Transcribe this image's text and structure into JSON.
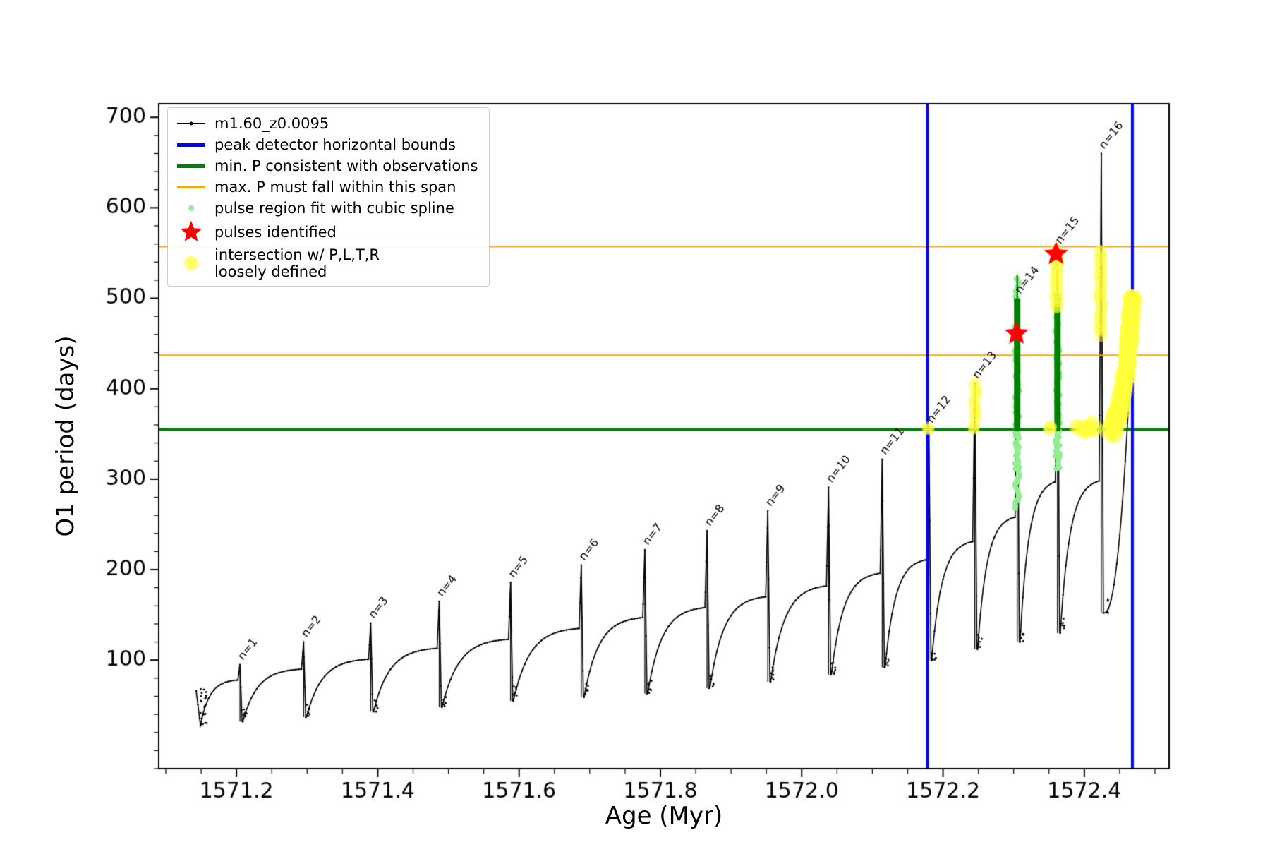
{
  "chart_data": {
    "type": "line",
    "title": "",
    "xlabel": "Age (Myr)",
    "ylabel": "O1 period (days)",
    "xlim": [
      1571.09,
      1572.52
    ],
    "ylim": [
      -20,
      715
    ],
    "grid": false,
    "xticks": {
      "values": [
        1571.2,
        1571.4,
        1571.6,
        1571.8,
        1572.0,
        1572.2,
        1572.4
      ],
      "labels": [
        "1571.2",
        "1571.4",
        "1571.6",
        "1571.8",
        "1572.0",
        "1572.2",
        "1572.4"
      ]
    },
    "yticks": {
      "values": [
        100,
        200,
        300,
        400,
        500,
        600,
        700
      ],
      "labels": [
        "100",
        "200",
        "300",
        "400",
        "500",
        "600",
        "700"
      ]
    },
    "xminor_step": 0.05,
    "yminor_step": 20,
    "colors": {
      "curve": "#000000",
      "bounds": "#0000ff",
      "min_p": "#008000",
      "max_p": "#ffa500",
      "spline": "#90ee90",
      "pulse": "#ff0000",
      "intersection": "#ffff3c"
    },
    "series_label": "m1.60_z0.0095",
    "legend": {
      "position": "upper-left",
      "entries": [
        {
          "marker": "line-dot",
          "color": "#000000",
          "label": "m1.60_z0.0095"
        },
        {
          "marker": "thick-line",
          "color": "#0000ff",
          "label": "peak detector horizontal bounds"
        },
        {
          "marker": "thick-line",
          "color": "#008000",
          "label": "min. P consistent with observations"
        },
        {
          "marker": "line",
          "color": "#ffa500",
          "label": "max. P must fall within this span"
        },
        {
          "marker": "small-dot",
          "color": "#90ee90",
          "label": "pulse region fit with cubic spline"
        },
        {
          "marker": "star",
          "color": "#ff0000",
          "label": "pulses identified"
        },
        {
          "marker": "big-dot",
          "color": "#ffff3c",
          "label": "intersection w/ P,L,T,R\nloosely defined"
        }
      ]
    },
    "prelude": {
      "x_start": 1571.143,
      "y_start": 66,
      "x_dip": 1571.149,
      "y_dip": 28
    },
    "pulses": [
      {
        "n": 1,
        "label": "n=1",
        "x": 1571.205,
        "peak": 95,
        "shoulder": 78,
        "min_after": 32
      },
      {
        "n": 2,
        "label": "n=2",
        "x": 1571.295,
        "peak": 120,
        "shoulder": 90,
        "min_after": 37
      },
      {
        "n": 3,
        "label": "n=3",
        "x": 1571.39,
        "peak": 141,
        "shoulder": 101,
        "min_after": 43
      },
      {
        "n": 4,
        "label": "n=4",
        "x": 1571.487,
        "peak": 165,
        "shoulder": 113,
        "min_after": 48
      },
      {
        "n": 5,
        "label": "n=5",
        "x": 1571.588,
        "peak": 186,
        "shoulder": 123,
        "min_after": 55
      },
      {
        "n": 6,
        "label": "n=6",
        "x": 1571.688,
        "peak": 205,
        "shoulder": 135,
        "min_after": 59
      },
      {
        "n": 7,
        "label": "n=7",
        "x": 1571.778,
        "peak": 222,
        "shoulder": 147,
        "min_after": 63
      },
      {
        "n": 8,
        "label": "n=8",
        "x": 1571.866,
        "peak": 243,
        "shoulder": 158,
        "min_after": 69
      },
      {
        "n": 9,
        "label": "n=9",
        "x": 1571.952,
        "peak": 265,
        "shoulder": 170,
        "min_after": 76
      },
      {
        "n": 10,
        "label": "n=10",
        "x": 1572.038,
        "peak": 291,
        "shoulder": 182,
        "min_after": 84
      },
      {
        "n": 11,
        "label": "n=11",
        "x": 1572.114,
        "peak": 322,
        "shoulder": 196,
        "min_after": 92
      },
      {
        "n": 12,
        "label": "n=12",
        "x": 1572.18,
        "peak": 357,
        "shoulder": 211,
        "min_after": 100
      },
      {
        "n": 13,
        "label": "n=13",
        "x": 1572.245,
        "peak": 406,
        "shoulder": 231,
        "min_after": 112
      },
      {
        "n": 14,
        "label": "n=14",
        "x": 1572.305,
        "peak": 500,
        "shoulder": 258,
        "min_after": 120
      },
      {
        "n": 15,
        "label": "n=15",
        "x": 1572.362,
        "peak": 555,
        "shoulder": 297,
        "min_after": 130
      },
      {
        "n": 16,
        "label": "n=16",
        "x": 1572.424,
        "peak": 660,
        "shoulder": 298,
        "min_after": 152
      }
    ],
    "tail": {
      "x_end": 1572.47,
      "y_end": 505
    },
    "hlines": [
      {
        "name": "min-p-line",
        "y": 355,
        "color": "#008000",
        "width": 4
      },
      {
        "name": "max-p-lower",
        "y": 437,
        "color": "#ffa500",
        "width": 2
      },
      {
        "name": "max-p-upper",
        "y": 557,
        "color": "#ffa500",
        "width": 2
      }
    ],
    "vlines": [
      {
        "name": "peak-bound-left",
        "x": 1572.178,
        "color": "#0000ff",
        "width": 4
      },
      {
        "name": "peak-bound-right",
        "x": 1572.468,
        "color": "#0000ff",
        "width": 4
      }
    ],
    "green_columns": [
      {
        "x": 1572.305,
        "y0": 353,
        "y1": 500,
        "width": 9
      },
      {
        "x": 1572.305,
        "y0": 500,
        "y1": 526,
        "width": 2.2
      },
      {
        "x": 1572.362,
        "y0": 353,
        "y1": 506,
        "width": 9
      }
    ],
    "lightgreen_segments": [
      {
        "x": 1572.305,
        "y0": 268,
        "y1": 352,
        "count": 34,
        "size": 4
      },
      {
        "x": 1572.362,
        "y0": 312,
        "y1": 352,
        "count": 20,
        "size": 4
      },
      {
        "x": 1572.305,
        "y0": 352,
        "y1": 468,
        "count": 26,
        "size": 4.5
      },
      {
        "x": 1572.362,
        "y0": 352,
        "y1": 478,
        "count": 26,
        "size": 4.5
      },
      {
        "x": 1572.305,
        "y0": 495,
        "y1": 522,
        "count": 8,
        "size": 4
      }
    ],
    "stars": [
      {
        "x": 1572.304,
        "y": 461
      },
      {
        "x": 1572.36,
        "y": 549
      }
    ],
    "yellow_paths": [
      {
        "points": [
          [
            1572.179,
            356
          ]
        ],
        "size": 8,
        "count": 3
      },
      {
        "points": [
          [
            1572.245,
            355
          ],
          [
            1572.246,
            406
          ]
        ],
        "size": 8,
        "count": 16
      },
      {
        "points": [
          [
            1572.361,
            489
          ],
          [
            1572.362,
            552
          ]
        ],
        "size": 9,
        "count": 18
      },
      {
        "points": [
          [
            1572.423,
            459
          ],
          [
            1572.424,
            552
          ]
        ],
        "size": 9,
        "count": 24
      },
      {
        "points": [
          [
            1572.391,
            357
          ],
          [
            1572.414,
            355
          ]
        ],
        "size": 11,
        "count": 9
      },
      {
        "points": [
          [
            1572.402,
            349
          ],
          [
            1572.41,
            364
          ]
        ],
        "size": 9,
        "count": 5
      },
      {
        "points": [
          [
            1572.352,
            356
          ]
        ],
        "size": 9,
        "count": 3
      },
      {
        "points": [
          [
            1572.436,
            352
          ],
          [
            1572.447,
            378
          ],
          [
            1572.456,
            412
          ],
          [
            1572.462,
            450
          ],
          [
            1572.466,
            488
          ],
          [
            1572.467,
            502
          ]
        ],
        "size": 12,
        "count": 60
      },
      {
        "points": [
          [
            1572.441,
            350
          ],
          [
            1572.451,
            374
          ],
          [
            1572.459,
            408
          ],
          [
            1572.464,
            446
          ],
          [
            1572.468,
            486
          ],
          [
            1572.469,
            502
          ]
        ],
        "size": 12,
        "count": 60
      }
    ]
  }
}
